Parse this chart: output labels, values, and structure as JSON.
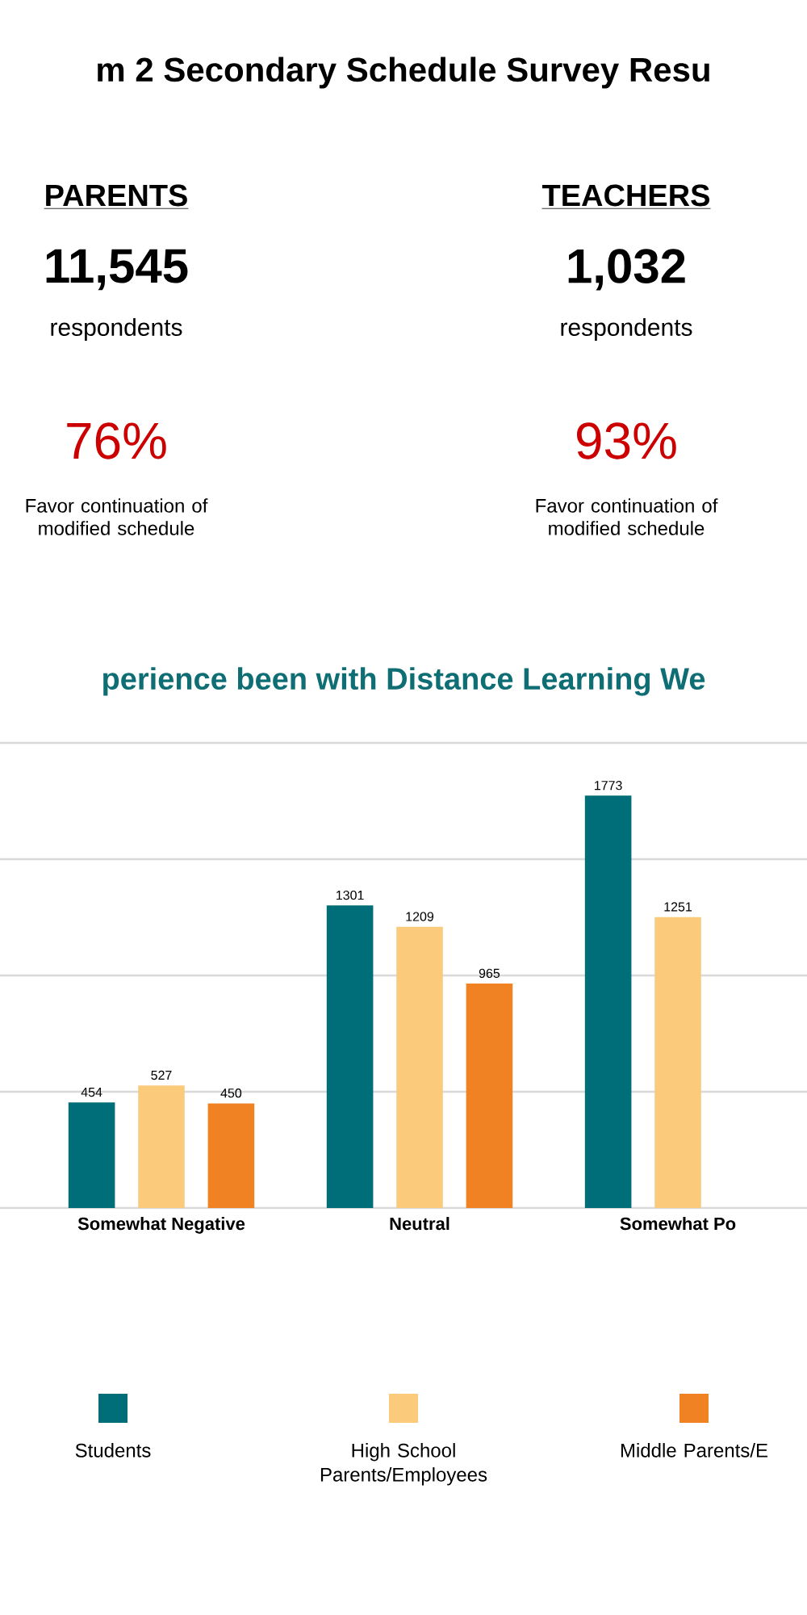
{
  "chart_data": [
    {
      "type": "other",
      "title": "m 2 Secondary Schedule Survey Resu",
      "annotations": [
        "PARENTS",
        "11,545",
        "respondents",
        "76%",
        "Favor continuation of modified schedule",
        "TEACHERS",
        "1,032",
        "respondents",
        "93%",
        "Favor continuation of modified schedule"
      ]
    },
    {
      "type": "bar",
      "title": "perience been with Distance Learning We",
      "categories": [
        "Somewhat Negative",
        "Neutral",
        "Somewhat Po"
      ],
      "series": [
        {
          "name": "Students",
          "color": "#006e78",
          "values": [
            454,
            1301,
            1773
          ]
        },
        {
          "name": "High School Parents/Employees",
          "color": "#fbcb7b",
          "values": [
            527,
            1209,
            1251
          ]
        },
        {
          "name": "Middle Parents/E",
          "color": "#f08224",
          "values": [
            450,
            965,
            null
          ]
        }
      ],
      "ylim": [
        0,
        2000
      ],
      "yticks": [
        {
          "value": 0,
          "label": null
        },
        {
          "value": 500,
          "label": null
        },
        {
          "value": 1000,
          "label": null
        },
        {
          "value": 1500,
          "label": null
        },
        {
          "value": 2000,
          "label": null
        }
      ],
      "tick_labels": "x",
      "grid": "y",
      "data_labels": true,
      "legend": "bottom"
    }
  ]
}
